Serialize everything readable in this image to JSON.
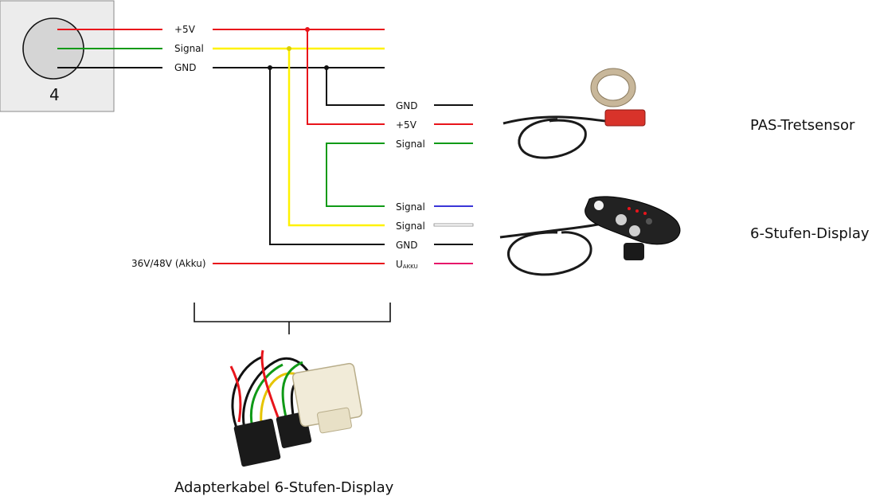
{
  "connector": {
    "pin_number": "4"
  },
  "top_bus": {
    "plus5v": "+5V",
    "signal": "Signal",
    "gnd": "GND"
  },
  "pas_branch": {
    "gnd": "GND",
    "plus5v": "+5V",
    "signal": "Signal"
  },
  "display_branch": {
    "signal_blue": "Signal",
    "signal_white": "Signal",
    "gnd": "GND",
    "uakku_main": "U",
    "uakku_sub": "AKKU"
  },
  "battery_label": "36V/48V (Akku)",
  "devices": {
    "pas_sensor": "PAS-Tretsensor",
    "display": "6-Stufen-Display"
  },
  "adapter_caption": "Adapterkabel 6-Stufen-Display",
  "colors": {
    "red": "#e8141b",
    "yellow": "#fff200",
    "green": "#109a17",
    "black": "#111111",
    "blue": "#3a35d8",
    "pink": "#e6166a",
    "connector_bg": "#ececec",
    "connector_circle": "#d5d5d5"
  }
}
